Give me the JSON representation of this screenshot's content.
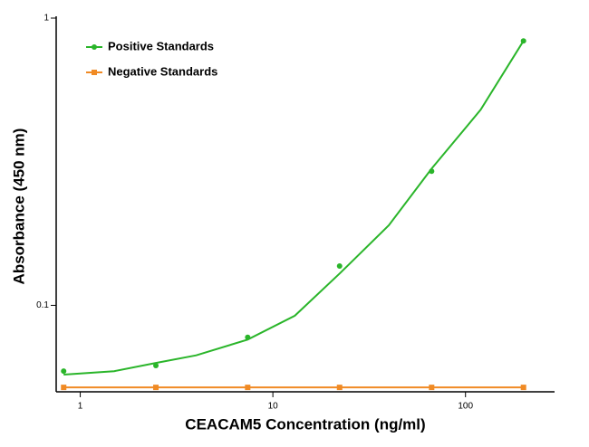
{
  "chart_data": {
    "type": "scatter",
    "x_label": "CEACAM5 Concentration (ng/ml)",
    "y_label": "Absorbance (450 nm)",
    "log_x": true,
    "log_y": true,
    "xlim": [
      0.75,
      290
    ],
    "ylim": [
      0.05,
      1
    ],
    "xticks": [
      1,
      10,
      100
    ],
    "yticks": [
      0.1,
      1
    ],
    "legend": "upper left",
    "series": [
      {
        "name": "Positive Standards",
        "color": "#2ab52a",
        "line": false,
        "x": [
          0.82,
          2.47,
          7.4,
          22.2,
          66.7,
          200
        ],
        "values": [
          0.059,
          0.0617,
          0.0774,
          0.137,
          0.293,
          0.833
        ]
      },
      {
        "name": "Negative Standards",
        "color": "#f08a24",
        "line": true,
        "x": [
          0.82,
          2.47,
          7.4,
          22.2,
          66.7,
          200
        ],
        "values": [
          0.0518,
          0.0518,
          0.0518,
          0.0518,
          0.0518,
          0.0518
        ]
      }
    ],
    "fit": {
      "color": "#2ab52a",
      "x": [
        0.82,
        1.5,
        2.47,
        4,
        7.4,
        13,
        22.2,
        40,
        66.7,
        120,
        200
      ],
      "values": [
        0.0574,
        0.059,
        0.063,
        0.067,
        0.076,
        0.092,
        0.129,
        0.19,
        0.299,
        0.48,
        0.833
      ]
    }
  }
}
